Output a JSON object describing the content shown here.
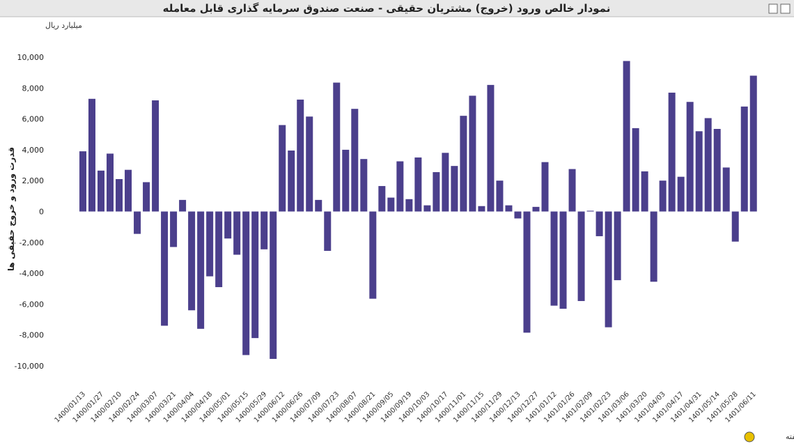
{
  "chart_data": {
    "type": "bar",
    "title": "نمودار خالص ورود (خروج) مشتریان حقیقی - صنعت صندوق سرمایه گذاری قابل معامله",
    "unit_label": "میلیارد ریال",
    "y_label": "قدرت ورود و خروج حقیقی ها",
    "x_label": "هفته",
    "color": "#4b3f8c",
    "categories": [
      "1400/01/13",
      null,
      "1400/01/27",
      null,
      "1400/02/10",
      null,
      "1400/02/24",
      null,
      "1400/03/07",
      null,
      "1400/03/21",
      null,
      "1400/04/04",
      null,
      "1400/04/18",
      null,
      "1400/05/01",
      null,
      "1400/05/15",
      null,
      "1400/05/29",
      null,
      "1400/06/12",
      null,
      "1400/06/26",
      null,
      "1400/07/09",
      null,
      "1400/07/23",
      null,
      "1400/08/07",
      null,
      "1400/08/21",
      null,
      "1400/09/05",
      null,
      "1400/09/19",
      null,
      "1400/10/03",
      null,
      "1400/10/17",
      null,
      "1400/11/01",
      null,
      "1400/11/15",
      null,
      "1400/11/29",
      null,
      "1400/12/13",
      null,
      "1400/12/27",
      null,
      "1401/01/12",
      null,
      "1401/01/26",
      null,
      "1401/02/09",
      null,
      "1401/02/23",
      null,
      "1401/03/06",
      null,
      "1401/03/20",
      null,
      "1401/04/03",
      null,
      "1401/04/17",
      null,
      "1401/04/31",
      null,
      "1401/05/14",
      null,
      "1401/05/28",
      null,
      "1401/06/11"
    ],
    "values": [
      3900,
      7300,
      2650,
      3750,
      2100,
      2700,
      -1450,
      1900,
      7200,
      -7400,
      -2300,
      750,
      -6400,
      -7600,
      -4200,
      -4900,
      -1750,
      -2800,
      -9300,
      -8200,
      -2450,
      -9550,
      5600,
      3950,
      7250,
      6150,
      750,
      -2550,
      8350,
      4000,
      6650,
      3400,
      -5650,
      1650,
      900,
      3250,
      800,
      3500,
      400,
      2550,
      3800,
      2950,
      6200,
      7500,
      350,
      8200,
      2000,
      400,
      -450,
      -7850,
      300,
      3200,
      -6100,
      -6300,
      2750,
      -5800,
      50,
      -1600,
      -7500,
      -4450,
      9750,
      5400,
      2600,
      -4550,
      2000,
      7700,
      2250,
      7100,
      5200,
      6050,
      5350,
      2850,
      -1950,
      6800,
      8800
    ],
    "ylim": [
      -10000,
      10000
    ],
    "yticks": [
      {
        "value": -10000,
        "label": "-10,000"
      },
      {
        "value": -8000,
        "label": "-8,000"
      },
      {
        "value": -6000,
        "label": "-6,000"
      },
      {
        "value": -4000,
        "label": "-4,000"
      },
      {
        "value": -2000,
        "label": "-2,000"
      },
      0,
      {
        "value": 2000,
        "label": "2,000"
      },
      {
        "value": 4000,
        "label": "4,000"
      },
      {
        "value": 6000,
        "label": "6,000"
      },
      {
        "value": 8000,
        "label": "8,000"
      },
      {
        "value": 10000,
        "label": "10,000"
      }
    ]
  }
}
